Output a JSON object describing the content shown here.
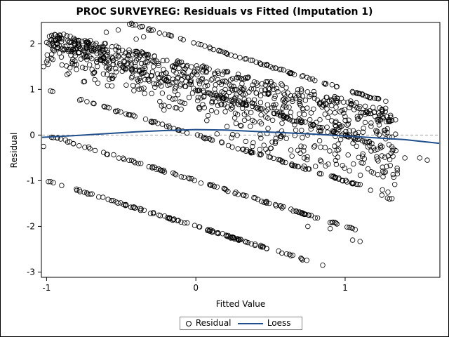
{
  "chart_data": {
    "type": "scatter",
    "title": "PROC SURVEYREG: Residuals vs Fitted (Imputation 1)",
    "xlabel": "Fitted Value",
    "ylabel": "Residual",
    "xlim": [
      -1.03,
      1.63
    ],
    "ylim": [
      -3.1,
      2.45
    ],
    "xticks": [
      -1,
      0,
      1
    ],
    "yticks": [
      -3,
      -2,
      -1,
      0,
      1,
      2
    ],
    "reference_line": {
      "y": 0,
      "style": "dashed",
      "color": "#a0a0a0"
    },
    "legend": {
      "placement": "bottom",
      "entries": [
        "Residual",
        "Loess"
      ]
    },
    "series": [
      {
        "name": "Residual",
        "marker": "open-circle",
        "color": "#000000",
        "bands": [
          {
            "outcome": -2,
            "x_range": [
              -1.02,
              0.75
            ]
          },
          {
            "outcome": -1,
            "x_range": [
              -1.02,
              1.08
            ]
          },
          {
            "outcome": 0,
            "x_range": [
              -1.0,
              1.12
            ]
          },
          {
            "outcome": 1,
            "x_range": [
              -0.98,
              1.22
            ]
          },
          {
            "outcome": 2,
            "x_range": [
              -0.95,
              1.28
            ]
          }
        ],
        "cloud": {
          "x_range": [
            -1.0,
            1.35
          ],
          "y_range": [
            -1.3,
            2.3
          ]
        },
        "points": [
          {
            "x": -0.9,
            "y": 2.05
          },
          {
            "x": -0.6,
            "y": 2.25
          },
          {
            "x": -0.52,
            "y": 2.3
          },
          {
            "x": -0.4,
            "y": 2.1
          },
          {
            "x": -0.35,
            "y": 2.15
          },
          {
            "x": 0.85,
            "y": -2.85
          },
          {
            "x": 1.05,
            "y": -2.3
          },
          {
            "x": 1.1,
            "y": -2.33
          },
          {
            "x": 0.75,
            "y": -2.0
          },
          {
            "x": 0.9,
            "y": -2.05
          },
          {
            "x": 1.25,
            "y": -1.2
          },
          {
            "x": 1.35,
            "y": -0.85
          },
          {
            "x": 1.4,
            "y": -0.5
          },
          {
            "x": 1.5,
            "y": -0.5
          },
          {
            "x": 1.55,
            "y": -0.55
          },
          {
            "x": 1.65,
            "y": -0.4
          },
          {
            "x": -1.02,
            "y": 1.5
          },
          {
            "x": -1.0,
            "y": 1.6
          },
          {
            "x": -1.02,
            "y": -0.25
          }
        ]
      },
      {
        "name": "Loess",
        "color": "#1f4e8c",
        "x": [
          -1.03,
          -0.8,
          -0.6,
          -0.4,
          -0.2,
          0.0,
          0.2,
          0.4,
          0.6,
          0.8,
          1.0,
          1.2,
          1.4,
          1.63
        ],
        "y": [
          -0.05,
          -0.01,
          0.03,
          0.07,
          0.1,
          0.12,
          0.11,
          0.08,
          0.05,
          0.02,
          -0.02,
          -0.06,
          -0.1,
          -0.18
        ]
      }
    ]
  },
  "legend_labels": {
    "residual": "Residual",
    "loess": "Loess"
  }
}
